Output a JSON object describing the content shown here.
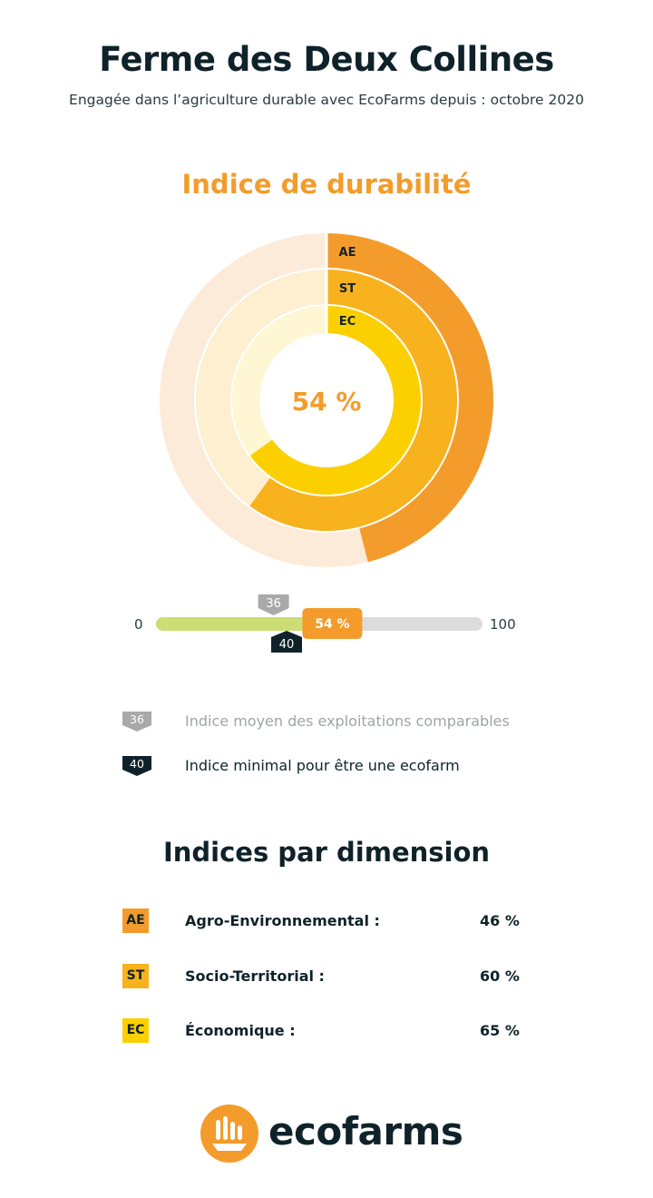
{
  "header": {
    "title": "Ferme des Deux Collines",
    "subtitle": "Engagée dans l’agriculture durable avec EcoFarms depuis : octobre 2020"
  },
  "sustainability": {
    "title": "Indice de durabilité",
    "center_value": "54 %"
  },
  "scale": {
    "min_label": "0",
    "max_label": "100",
    "value": 54,
    "value_label": "54 %",
    "average_marker": "36",
    "minimum_marker": "40"
  },
  "legend": {
    "average_label": "Indice moyen des exploitations comparables",
    "minimum_label": "Indice minimal pour être une ecofarm"
  },
  "dimensions": {
    "title": "Indices par dimension",
    "items": [
      {
        "code": "AE",
        "label": "Agro-Environnemental :",
        "value": "46 %"
      },
      {
        "code": "ST",
        "label": "Socio-Territorial :",
        "value": "60 %"
      },
      {
        "code": "EC",
        "label": "Économique :",
        "value": "65 %"
      }
    ]
  },
  "chart_data": {
    "type": "radial-bar",
    "title": "Indice de durabilité",
    "center_label": "54 %",
    "series": [
      {
        "name": "AE",
        "value": 46,
        "color": "#f39c2b",
        "track_color": "#fdebd9"
      },
      {
        "name": "ST",
        "value": 60,
        "color": "#f8b21d",
        "track_color": "#fdefcf"
      },
      {
        "name": "EC",
        "value": 65,
        "color": "#fcd000",
        "track_color": "#fff6d4"
      }
    ],
    "range": [
      0,
      100
    ]
  },
  "brand": {
    "logo_text": "ecofarms",
    "accent_color": "#f39c2b",
    "dark_color": "#0f2229",
    "icon": "wheat-icon"
  }
}
